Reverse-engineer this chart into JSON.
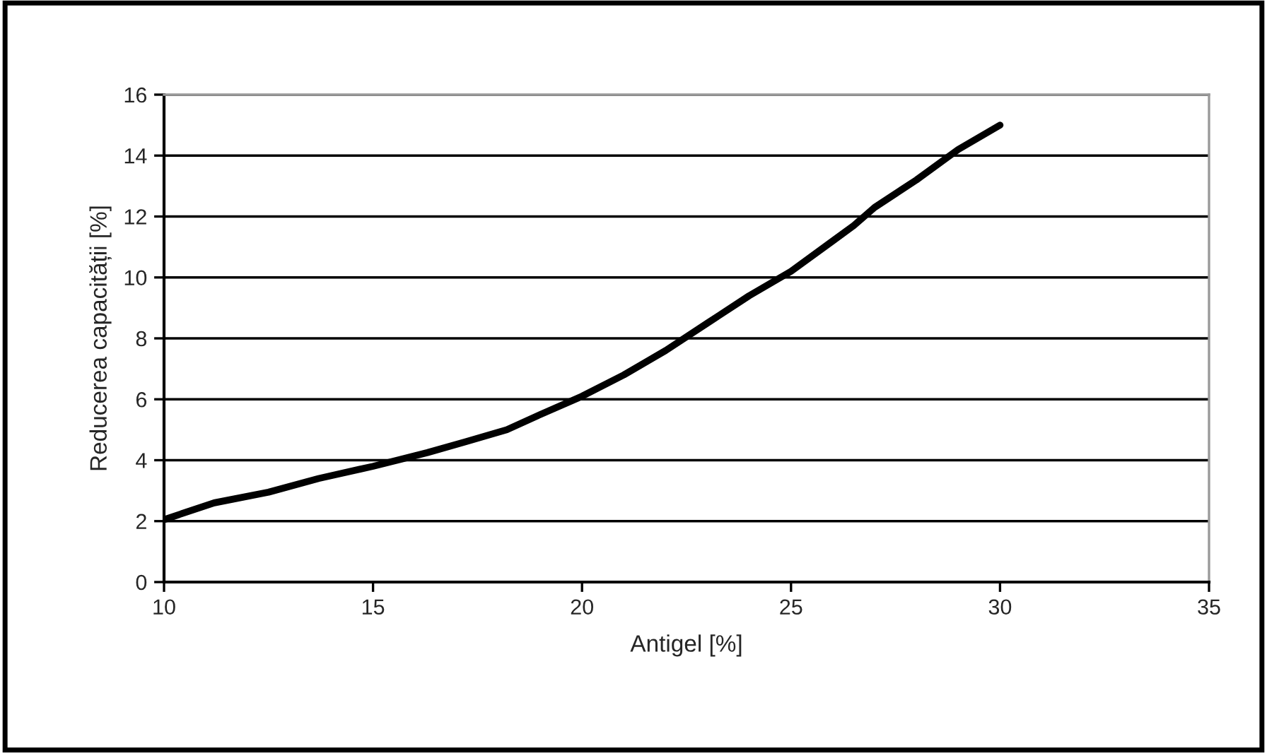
{
  "chart_data": {
    "type": "line",
    "xlabel": "Antigel [%]",
    "ylabel": "Reducerea capacității [%]",
    "x": [
      10,
      11.2,
      12.5,
      13.7,
      15,
      16.3,
      17.2,
      18.2,
      19,
      20,
      21,
      22,
      23,
      24,
      25,
      26,
      26.5,
      27,
      28,
      29,
      30
    ],
    "series": [
      {
        "color": "#000000",
        "values": [
          2.05,
          2.6,
          2.95,
          3.4,
          3.8,
          4.25,
          4.6,
          5.0,
          5.5,
          6.1,
          6.8,
          7.6,
          8.5,
          9.4,
          10.2,
          11.2,
          11.7,
          12.3,
          13.2,
          14.2,
          15.0
        ]
      }
    ],
    "xlim": [
      10,
      35
    ],
    "xticks": [
      10,
      15,
      20,
      25,
      30,
      35
    ],
    "ylim": [
      0,
      16
    ],
    "yticks": [
      0,
      2,
      4,
      6,
      8,
      10,
      12,
      14,
      16
    ],
    "grid": "y",
    "legend": false,
    "marker": "none",
    "line_style": "solid"
  }
}
